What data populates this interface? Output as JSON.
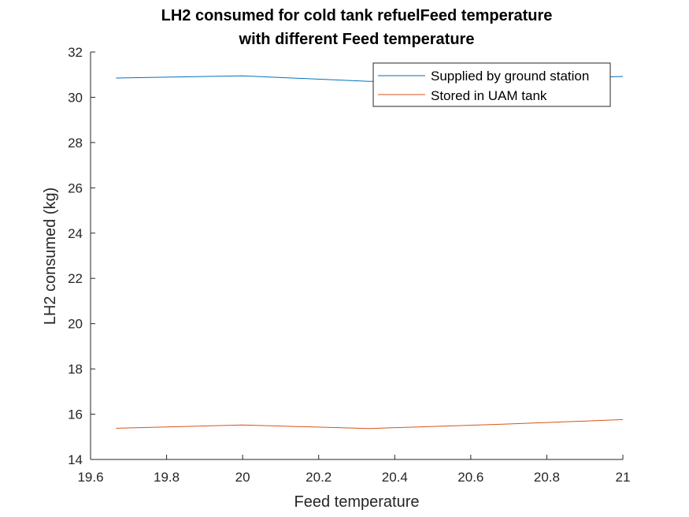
{
  "chart_data": {
    "type": "line",
    "title": [
      "LH2 consumed for cold tank refuelFeed temperature",
      "with different Feed temperature"
    ],
    "xlabel": "Feed temperature",
    "ylabel": "LH2 consumed (kg)",
    "xlim": [
      19.6,
      21
    ],
    "ylim": [
      14,
      32
    ],
    "xticks": [
      "19.6",
      "19.8",
      "20",
      "20.2",
      "20.4",
      "20.6",
      "20.8",
      "21"
    ],
    "yticks": [
      "14",
      "16",
      "18",
      "20",
      "22",
      "24",
      "26",
      "28",
      "30",
      "32"
    ],
    "grid": false,
    "legend_position": "top-right",
    "series": [
      {
        "name": "Supplied by ground station",
        "color": "#0072BD",
        "x": [
          19.667,
          20.0,
          20.333,
          20.667,
          21.0
        ],
        "y": [
          30.85,
          30.95,
          30.7,
          30.75,
          30.92
        ]
      },
      {
        "name": "Stored in UAM tank",
        "color": "#D95319",
        "x": [
          19.667,
          20.0,
          20.333,
          20.667,
          21.0
        ],
        "y": [
          15.38,
          15.52,
          15.37,
          15.55,
          15.76
        ]
      }
    ]
  }
}
